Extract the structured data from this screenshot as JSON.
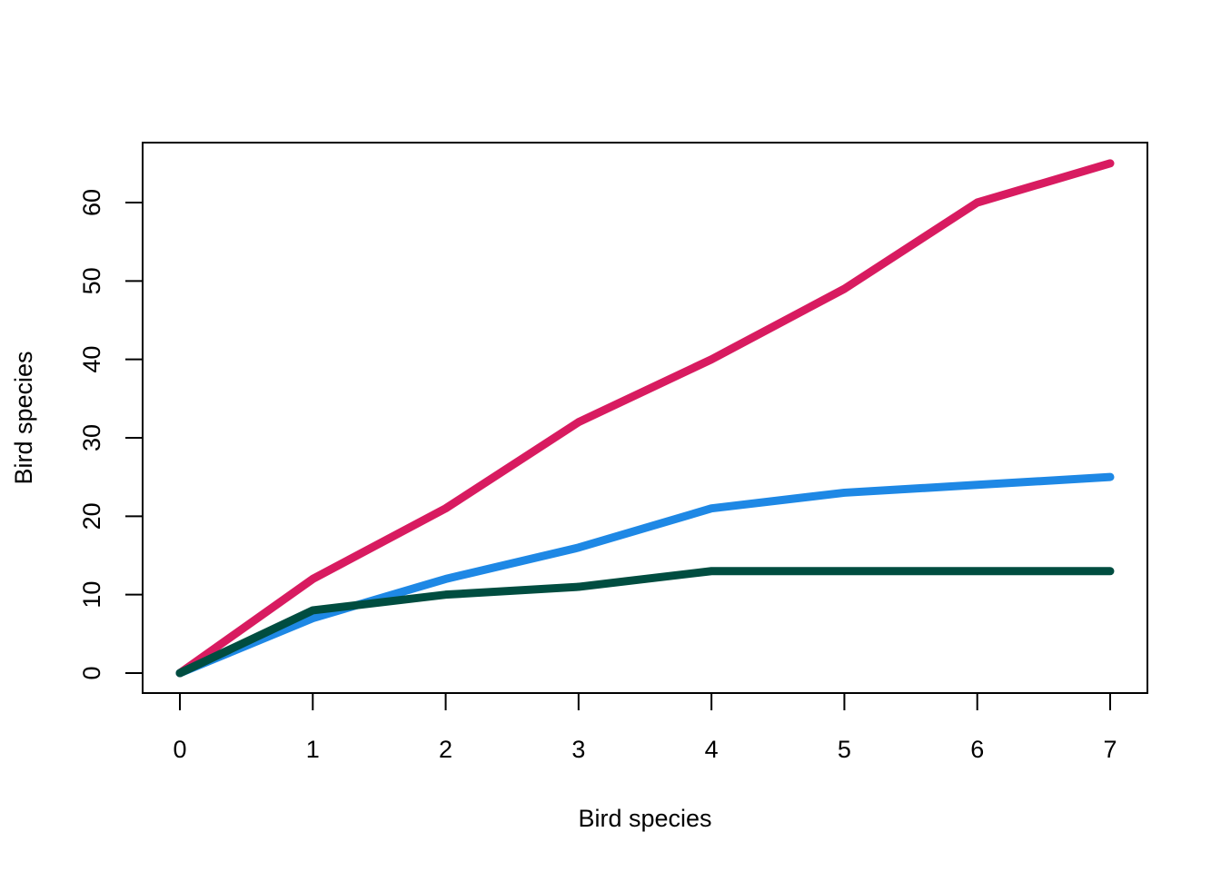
{
  "chart_data": {
    "type": "line",
    "title": "",
    "xlabel": "Bird species",
    "ylabel": "Bird species",
    "x": [
      0,
      1,
      2,
      3,
      4,
      5,
      6,
      7
    ],
    "xticks": [
      0,
      1,
      2,
      3,
      4,
      5,
      6,
      7
    ],
    "yticks": [
      0,
      10,
      20,
      30,
      40,
      50,
      60
    ],
    "xlim": [
      0,
      7
    ],
    "ylim": [
      0,
      65
    ],
    "grid": false,
    "legend": "none",
    "series": [
      {
        "color": "#D81B60",
        "values": [
          0,
          12,
          21,
          32,
          40,
          49,
          60,
          65
        ]
      },
      {
        "color": "#1E88E5",
        "values": [
          0,
          7,
          12,
          16,
          21,
          23,
          24,
          25
        ]
      },
      {
        "color": "#004D40",
        "values": [
          0,
          8,
          10,
          11,
          13,
          13,
          13,
          13
        ]
      }
    ]
  }
}
